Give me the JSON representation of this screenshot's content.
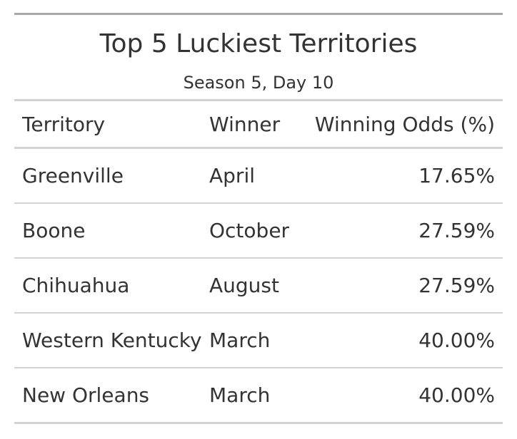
{
  "chart_data": {
    "type": "table",
    "title": "Top 5 Luckiest Territories",
    "subtitle": "Season 5, Day 10",
    "columns": [
      "Territory",
      "Winner",
      "Winning Odds (%)"
    ],
    "rows": [
      [
        "Greenville",
        "April",
        "17.65%"
      ],
      [
        "Boone",
        "October",
        "27.59%"
      ],
      [
        "Chihuahua",
        "August",
        "27.59%"
      ],
      [
        "Western Kentucky",
        "March",
        "40.00%"
      ],
      [
        "New Orleans",
        "March",
        "40.00%"
      ]
    ]
  }
}
